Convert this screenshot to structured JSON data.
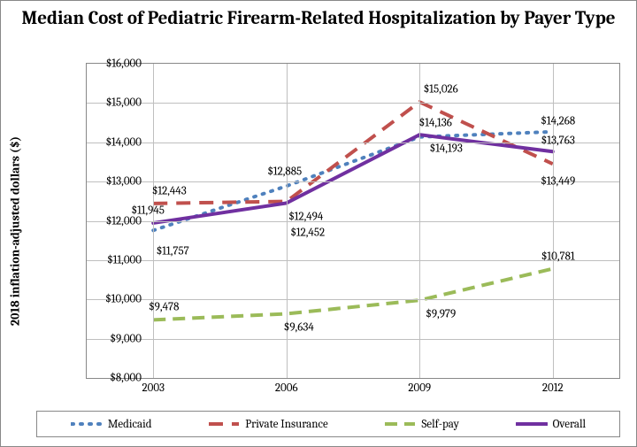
{
  "title": "Median Cost of Pediatric Firearm-Related Hospitalization by Payer Type",
  "y_axis_label": "2018 inflation-adjusted dollars ($)",
  "y_axis": {
    "min": 8000,
    "max": 16000,
    "step": 1000,
    "ticks": [
      {
        "v": 8000,
        "label": "$8,000"
      },
      {
        "v": 9000,
        "label": "$9,000"
      },
      {
        "v": 10000,
        "label": "$10,000"
      },
      {
        "v": 11000,
        "label": "$11,000"
      },
      {
        "v": 12000,
        "label": "$12,000"
      },
      {
        "v": 13000,
        "label": "$13,000"
      },
      {
        "v": 14000,
        "label": "$14,000"
      },
      {
        "v": 15000,
        "label": "$15,000"
      },
      {
        "v": 16000,
        "label": "$16,000"
      }
    ]
  },
  "x_axis": {
    "categories": [
      "2003",
      "2006",
      "2009",
      "2012"
    ]
  },
  "series": [
    {
      "key": "medicaid",
      "name": "Medicaid",
      "color": "#4f81bd",
      "dash": "2 8",
      "width": 4,
      "linecap": "round",
      "values": [
        11757,
        12885,
        14136,
        14268
      ],
      "labels": [
        "$11,757",
        "$12,885",
        "$14,136",
        "$14,268"
      ],
      "label_offsets": [
        [
          22,
          24
        ],
        [
          -2,
          -16
        ],
        [
          18,
          -16
        ],
        [
          6,
          -12
        ]
      ]
    },
    {
      "key": "private",
      "name": "Private Insurance",
      "color": "#c0504d",
      "dash": "16 10",
      "width": 4,
      "linecap": "butt",
      "values": [
        12443,
        12494,
        15026,
        13449
      ],
      "labels": [
        "$12,443",
        "$12,494",
        "$15,026",
        "$13,449"
      ],
      "label_offsets": [
        [
          18,
          -14
        ],
        [
          22,
          17
        ],
        [
          24,
          -14
        ],
        [
          6,
          20
        ]
      ]
    },
    {
      "key": "selfpay",
      "name": "Self-pay",
      "color": "#9bbb59",
      "dash": "14 8",
      "width": 4,
      "linecap": "butt",
      "values": [
        9478,
        9634,
        9979,
        10781
      ],
      "labels": [
        "$9,478",
        "$9,634",
        "$9,979",
        "$10,781"
      ],
      "label_offsets": [
        [
          12,
          -14
        ],
        [
          14,
          16
        ],
        [
          24,
          16
        ],
        [
          6,
          -14
        ]
      ]
    },
    {
      "key": "overall",
      "name": "Overall",
      "color": "#7030a0",
      "dash": "",
      "width": 4,
      "linecap": "round",
      "values": [
        11945,
        12452,
        14193,
        13763
      ],
      "labels": [
        "$11,945",
        "$12,452",
        "$14,193",
        "$13,763"
      ],
      "label_offsets": [
        [
          -6,
          -14
        ],
        [
          24,
          34
        ],
        [
          30,
          16
        ],
        [
          6,
          -12
        ]
      ]
    }
  ],
  "legend_order": [
    "medicaid",
    "private",
    "selfpay",
    "overall"
  ],
  "colors": {
    "grid": "#bfbfbf",
    "border": "#888888",
    "text": "#000000",
    "background": "#ffffff"
  }
}
